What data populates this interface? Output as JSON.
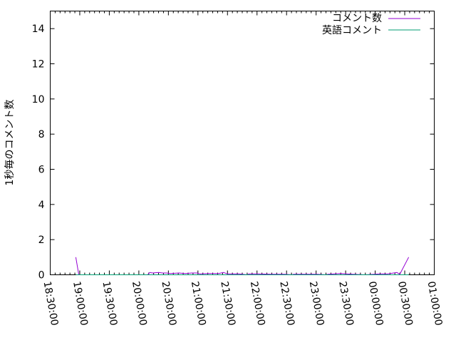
{
  "chart_data": {
    "type": "line",
    "title": "",
    "xlabel": "",
    "ylabel": "1秒毎のコメント数",
    "xlim": [
      "18:30:00",
      "01:00:00"
    ],
    "ylim": [
      0,
      15
    ],
    "x_ticks": [
      "18:30:00",
      "19:00:00",
      "19:30:00",
      "20:00:00",
      "20:30:00",
      "21:00:00",
      "21:30:00",
      "22:00:00",
      "22:30:00",
      "23:00:00",
      "23:30:00",
      "00:00:00",
      "00:30:00",
      "01:00:00"
    ],
    "y_ticks": [
      "0",
      "2",
      "4",
      "6",
      "8",
      "10",
      "12",
      "14"
    ],
    "grid": false,
    "legend_position": "top-right",
    "series": [
      {
        "name": "コメント数",
        "color": "#9400d3",
        "points": [
          [
            "18:56",
            1.0
          ],
          [
            "18:59",
            0
          ],
          [
            "20:00",
            0
          ],
          [
            "20:09",
            0
          ],
          [
            "20:11",
            0.13
          ],
          [
            "20:14",
            0.1
          ],
          [
            "20:20",
            0.13
          ],
          [
            "20:24",
            0.1
          ],
          [
            "20:28",
            0.1
          ],
          [
            "20:32",
            0.07
          ],
          [
            "20:41",
            0.1
          ],
          [
            "20:47",
            0.07
          ],
          [
            "20:54",
            0.1
          ],
          [
            "20:59",
            0.1
          ],
          [
            "21:02",
            0.05
          ],
          [
            "21:11",
            0.07
          ],
          [
            "21:21",
            0.07
          ],
          [
            "21:26",
            0.13
          ],
          [
            "21:30",
            0.05
          ],
          [
            "21:42",
            0.05
          ],
          [
            "21:50",
            0
          ],
          [
            "21:52",
            0.05
          ],
          [
            "22:01",
            0.05
          ],
          [
            "22:15",
            0.03
          ],
          [
            "22:28",
            0.03
          ],
          [
            "22:36",
            0
          ],
          [
            "22:37",
            0.03
          ],
          [
            "23:01",
            0.03
          ],
          [
            "23:10",
            0
          ],
          [
            "23:12",
            0.03
          ],
          [
            "23:25",
            0.07
          ],
          [
            "23:37",
            0.03
          ],
          [
            "23:50",
            0
          ],
          [
            "00:05",
            0.05
          ],
          [
            "00:13",
            0.05
          ],
          [
            "00:22",
            0.13
          ],
          [
            "00:25",
            0.03
          ],
          [
            "00:34",
            1.0
          ]
        ]
      },
      {
        "name": "英語コメント",
        "color": "#009e73",
        "points": [
          [
            "18:56",
            0
          ],
          [
            "20:15",
            0
          ],
          [
            "21:00",
            0
          ],
          [
            "22:00",
            0
          ],
          [
            "23:00",
            0
          ],
          [
            "00:00",
            0
          ],
          [
            "00:34",
            0
          ]
        ]
      }
    ]
  }
}
